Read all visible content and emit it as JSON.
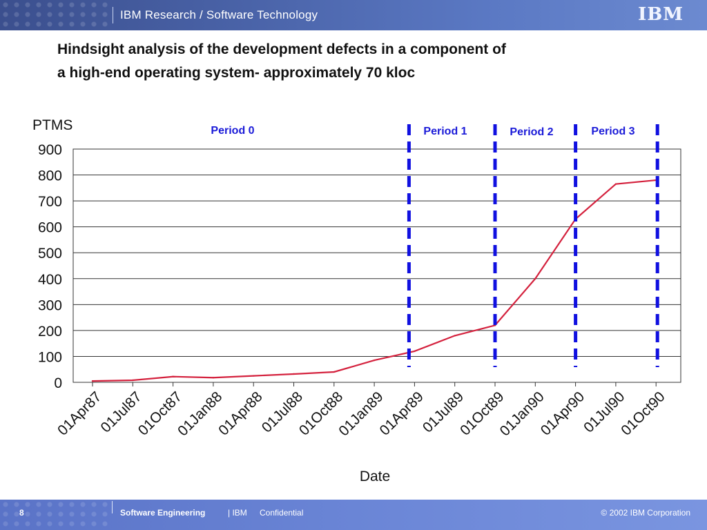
{
  "header": {
    "title": "IBM Research / Software Technology",
    "logo": "IBM"
  },
  "slide": {
    "title_line1": "Hindsight analysis of the development defects in a component of",
    "title_line2": "a high-end operating system- approximately  70 kloc"
  },
  "chart_data": {
    "type": "line",
    "title": "",
    "ylabel": "PTMS",
    "xlabel": "Date",
    "ylim": [
      0,
      900
    ],
    "yticks": [
      0,
      100,
      200,
      300,
      400,
      500,
      600,
      700,
      800,
      900
    ],
    "grid": true,
    "categories": [
      "01Apr87",
      "01Jul87",
      "01Oct87",
      "01Jan88",
      "01Apr88",
      "01Jul88",
      "01Oct88",
      "01Jan89",
      "01Apr89",
      "01Jul89",
      "01Oct89",
      "01Jan90",
      "01Apr90",
      "01Jul90",
      "01Oct90"
    ],
    "series": [
      {
        "x": [
          "01Apr87",
          "01Jul87",
          "01Oct87",
          "01Jan88",
          "01Apr88",
          "01Jul88",
          "01Oct88",
          "01Jan89",
          "01Apr89",
          "01Jul89",
          "01Oct89",
          "01Jan90",
          "01Apr90",
          "01Jul90",
          "01Oct90"
        ],
        "values": [
          5,
          8,
          22,
          18,
          25,
          32,
          40,
          85,
          120,
          180,
          220,
          400,
          630,
          765,
          780
        ],
        "color": "#d4213d"
      }
    ],
    "periods": [
      {
        "label": "Period 0",
        "start": "01Apr87",
        "end": "01Apr89"
      },
      {
        "label": "Period 1",
        "start": "01Apr89",
        "end": "01Oct89"
      },
      {
        "label": "Period 2",
        "start": "01Oct89",
        "end": "01Apr90"
      },
      {
        "label": "Period 3",
        "start": "01Apr90",
        "end": "01Oct90"
      }
    ],
    "period_boundaries": [
      "01Apr89",
      "01Oct89",
      "01Apr90",
      "01Oct90"
    ],
    "boundary_color": "#1010e0",
    "period_label_color": "#1a1ad8"
  },
  "footer": {
    "page": "8",
    "course": "Software Engineering",
    "org": "| IBM",
    "confidential": "Confidential",
    "copyright": "© 2002 IBM Corporation"
  }
}
